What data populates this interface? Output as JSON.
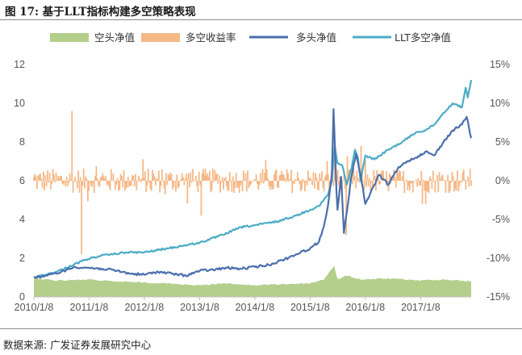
{
  "figure": {
    "title": "图 17:  基于LLT指标构建多空策略表现",
    "source": "数据来源:  广发证券发展研究中心"
  },
  "chart_data": {
    "type": "line",
    "legend": [
      "空头净值",
      "多空收益率",
      "多头净值",
      "LLT多空净值"
    ],
    "legend_placement": "top",
    "x_ticks": [
      "2010/1/8",
      "2011/1/8",
      "2012/1/8",
      "2013/1/8",
      "2014/1/8",
      "2015/1/8",
      "2016/1/8",
      "2017/1/8"
    ],
    "xlim": [
      "2010/1/8",
      "2017/12/8"
    ],
    "y_left": {
      "ticks": [
        "0",
        "2",
        "4",
        "6",
        "8",
        "10",
        "12"
      ],
      "range": [
        0,
        12
      ]
    },
    "y_right": {
      "ticks": [
        "15%",
        "10%",
        "5%",
        "0%",
        "-5%",
        "-10%",
        "-15%"
      ],
      "range": [
        -15,
        15
      ]
    },
    "grid": false,
    "colors": {
      "short": "#b4cf8c",
      "spread": "#f5b887",
      "long": "#4a6fad",
      "llt": "#4bacc6"
    },
    "series": [
      {
        "name": "多头净值",
        "axis": "left",
        "x": [
          "2010/1/8",
          "2010/4/8",
          "2010/7/8",
          "2010/10/8",
          "2011/1/8",
          "2011/4/8",
          "2011/7/8",
          "2011/10/8",
          "2012/1/8",
          "2012/4/8",
          "2012/7/8",
          "2012/10/8",
          "2013/1/8",
          "2013/4/8",
          "2013/7/8",
          "2013/10/8",
          "2014/1/8",
          "2014/4/8",
          "2014/7/8",
          "2014/10/8",
          "2015/1/8",
          "2015/3/8",
          "2015/4/8",
          "2015/5/8",
          "2015/6/1",
          "2015/6/12",
          "2015/7/1",
          "2015/7/8",
          "2015/8/1",
          "2015/8/20",
          "2015/9/8",
          "2015/10/8",
          "2015/11/8",
          "2015/12/8",
          "2016/1/8",
          "2016/2/8",
          "2016/4/8",
          "2016/6/8",
          "2016/8/8",
          "2016/10/8",
          "2016/12/8",
          "2017/2/8",
          "2017/4/8",
          "2017/6/8",
          "2017/8/8",
          "2017/10/8",
          "2017/11/8",
          "2017/12/8"
        ],
        "values": [
          1.0,
          1.1,
          1.3,
          1.55,
          1.5,
          1.45,
          1.35,
          1.2,
          1.15,
          1.3,
          1.2,
          1.1,
          1.35,
          1.4,
          1.5,
          1.45,
          1.55,
          1.65,
          1.9,
          2.2,
          2.5,
          2.85,
          3.6,
          4.8,
          6.3,
          9.7,
          5.5,
          4.5,
          6.2,
          3.3,
          4.4,
          6.2,
          7.4,
          6.3,
          4.8,
          5.3,
          6.3,
          5.8,
          6.6,
          7.0,
          7.2,
          7.5,
          7.3,
          8.0,
          8.6,
          8.9,
          9.3,
          8.2
        ]
      },
      {
        "name": "LLT多空净值",
        "axis": "left",
        "x": [
          "2010/1/8",
          "2010/6/8",
          "2010/12/8",
          "2011/3/8",
          "2011/6/8",
          "2011/9/8",
          "2012/1/8",
          "2012/6/8",
          "2013/1/8",
          "2013/6/8",
          "2013/10/8",
          "2014/1/8",
          "2014/6/8",
          "2014/10/8",
          "2015/1/8",
          "2015/3/8",
          "2015/4/8",
          "2015/5/8",
          "2015/6/1",
          "2015/6/20",
          "2015/7/8",
          "2015/8/8",
          "2015/9/8",
          "2015/10/8",
          "2015/11/1",
          "2015/11/20",
          "2015/12/8",
          "2016/1/8",
          "2016/3/8",
          "2016/6/8",
          "2016/9/8",
          "2016/12/8",
          "2017/2/8",
          "2017/4/8",
          "2017/6/8",
          "2017/8/8",
          "2017/10/8",
          "2017/11/1",
          "2017/11/15",
          "2017/12/8"
        ],
        "values": [
          1.0,
          1.3,
          1.9,
          2.1,
          2.2,
          2.3,
          2.3,
          2.5,
          2.8,
          3.2,
          3.6,
          3.7,
          3.9,
          4.2,
          4.5,
          4.7,
          5.0,
          5.3,
          6.0,
          7.8,
          6.9,
          6.8,
          5.8,
          6.6,
          7.6,
          7.2,
          6.0,
          7.3,
          7.1,
          7.6,
          8.0,
          8.5,
          8.6,
          8.9,
          9.5,
          10.0,
          9.8,
          10.8,
          10.3,
          11.2
        ]
      },
      {
        "name": "空头净值",
        "axis": "left",
        "x": [
          "2010/1/8",
          "2010/6/8",
          "2011/1/8",
          "2011/6/8",
          "2012/1/8",
          "2012/6/8",
          "2013/1/8",
          "2013/6/8",
          "2014/1/8",
          "2014/6/8",
          "2015/1/8",
          "2015/4/8",
          "2015/6/15",
          "2015/7/8",
          "2015/9/8",
          "2015/12/8",
          "2016/6/8",
          "2017/1/8",
          "2017/6/8",
          "2017/12/8"
        ],
        "values": [
          0.95,
          0.85,
          0.9,
          0.8,
          0.75,
          0.7,
          0.6,
          0.7,
          0.6,
          0.65,
          0.7,
          0.9,
          1.6,
          0.9,
          1.1,
          0.9,
          0.95,
          0.85,
          0.9,
          0.8
        ]
      },
      {
        "name": "多空收益率",
        "axis": "right",
        "type": "bar",
        "x": [
          "2010/9/20",
          "2010/11/20",
          "2013/1/20",
          "2015/6/22",
          "2015/9/1",
          "2015/12/8",
          "2017/1/20"
        ],
        "values": [
          9.0,
          -9.5,
          -4.5,
          7.0,
          -7.0,
          4.5,
          -3.0
        ],
        "note": "weekly bars mostly within ±3%"
      }
    ]
  }
}
